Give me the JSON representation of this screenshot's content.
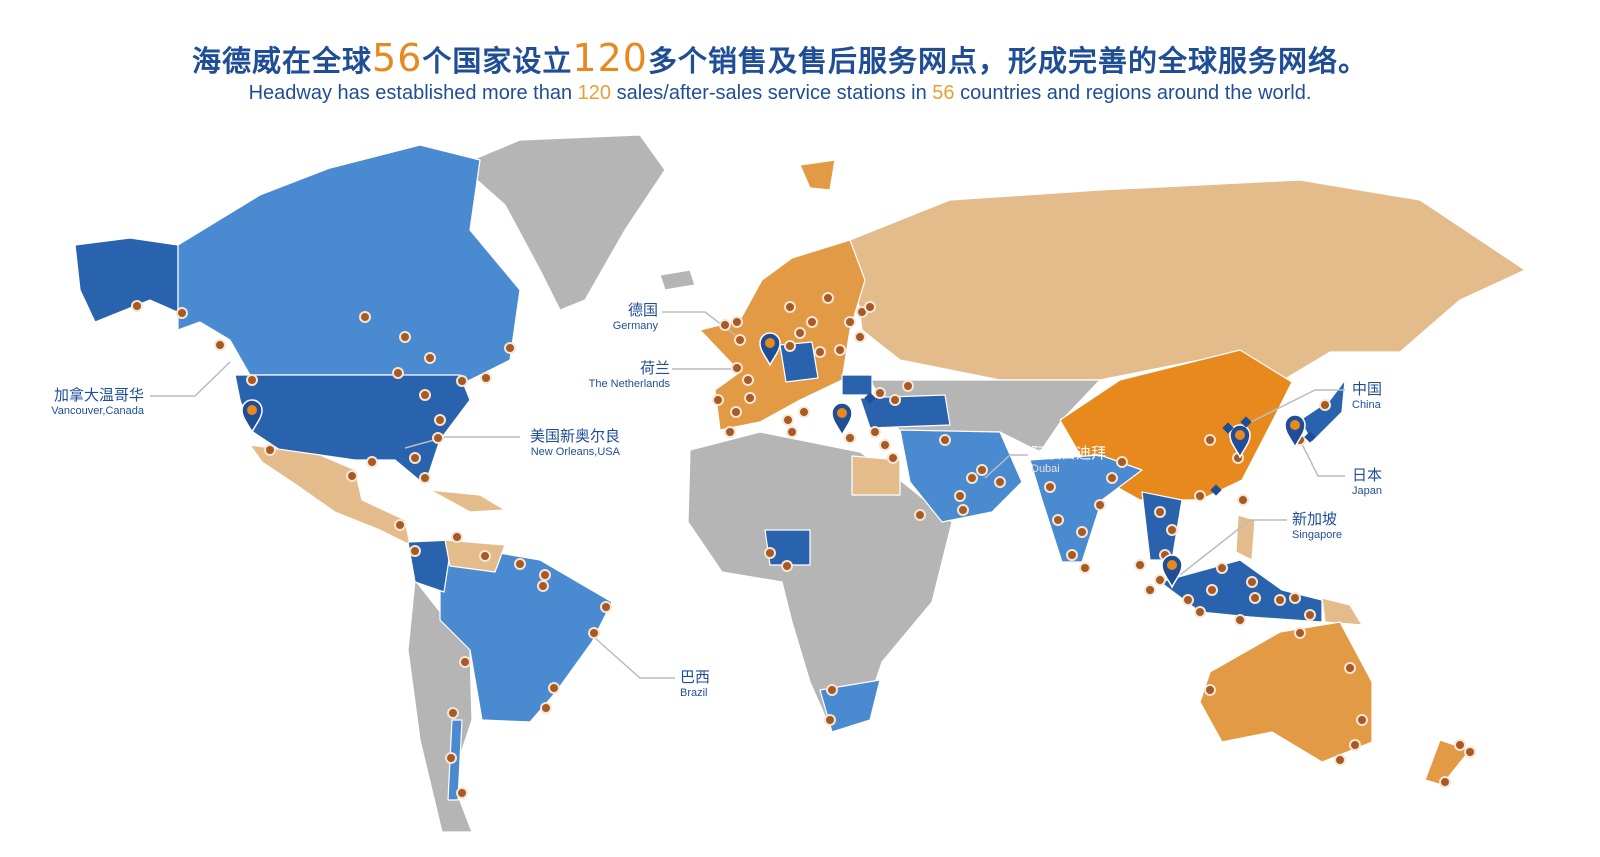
{
  "header": {
    "title_parts": [
      "海德威在全球",
      "56",
      "个国家设立",
      "120",
      "多个销售及售后服务网点，形成完善的全球服务网络。"
    ],
    "subtitle_parts": [
      "Headway has established more than ",
      "120",
      " sales/after-sales service stations in ",
      "56",
      " countries and regions around the world."
    ]
  },
  "labels": {
    "vancouver": {
      "cn": "加拿大温哥华",
      "en": "Vancouver,Canada"
    },
    "new_orleans": {
      "cn": "美国新奥尔良",
      "en": "New Orleans,USA"
    },
    "germany": {
      "cn": "德国",
      "en": "Germany"
    },
    "netherlands": {
      "cn": "荷兰",
      "en": "The Netherlands"
    },
    "dubai": {
      "cn": "阿联酋迪拜",
      "en": "Dubai"
    },
    "china": {
      "cn": "中国",
      "en": "China"
    },
    "japan": {
      "cn": "日本",
      "en": "Japan"
    },
    "singapore": {
      "cn": "新加坡",
      "en": "Singapore"
    },
    "brazil": {
      "cn": "巴西",
      "en": "Brazil"
    }
  },
  "colors": {
    "text_blue": "#1f4e97",
    "accent_orange": "#e8891e",
    "dark_blue": "#2a63ad",
    "mid_blue": "#4a8ad0",
    "light_orange": "#e4bb8a",
    "mid_orange": "#e39a45",
    "grey": "#b5b5b5",
    "station_dot": "#a85a24"
  },
  "icons": {
    "station": "station-dot-icon",
    "hub": "map-pin-icon",
    "office": "diamond-icon"
  }
}
